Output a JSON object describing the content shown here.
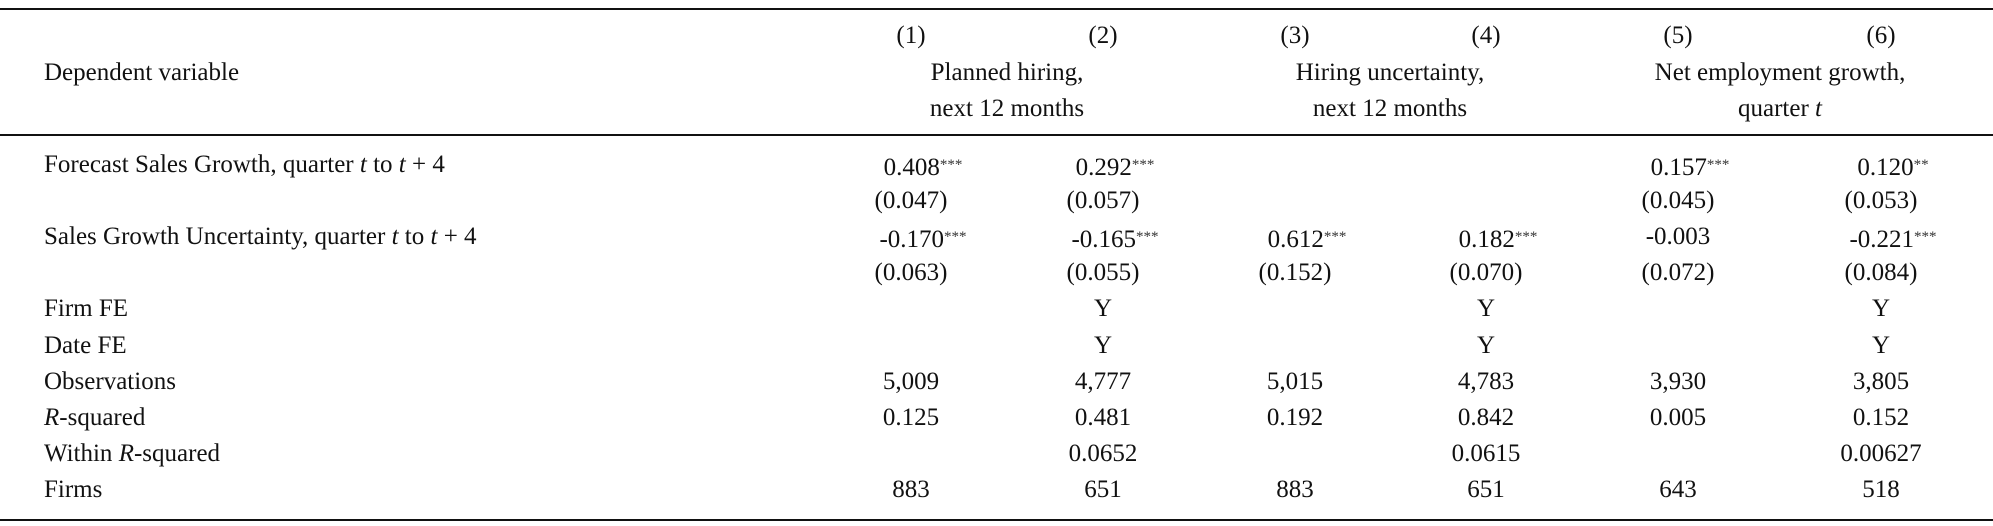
{
  "header": {
    "dependent": "Dependent variable",
    "columns": [
      "(1)",
      "(2)",
      "(3)",
      "(4)",
      "(5)",
      "(6)"
    ],
    "groups": [
      {
        "lines": [
          "Planned hiring,",
          "next 12 months"
        ]
      },
      {
        "lines": [
          "Hiring uncertainty,",
          "next 12 months"
        ]
      },
      {
        "lines": [
          "Net employment growth,",
          [
            "quarter ",
            {
              "text": "t",
              "italic": true
            }
          ]
        ]
      }
    ]
  },
  "rows": [
    {
      "label": [
        "Forecast Sales Growth, quarter ",
        {
          "text": "t",
          "italic": true
        },
        " to ",
        {
          "text": "t",
          "italic": true
        },
        " + 4"
      ],
      "cells": [
        {
          "value": "0.408",
          "stars": "***"
        },
        {
          "value": "0.292",
          "stars": "***"
        },
        null,
        null,
        {
          "value": "0.157",
          "stars": "***"
        },
        {
          "value": "0.120",
          "stars": "**"
        }
      ]
    },
    {
      "label": null,
      "cells": [
        "(0.047)",
        "(0.057)",
        null,
        null,
        "(0.045)",
        "(0.053)"
      ]
    },
    {
      "label": [
        "Sales Growth Uncertainty, quarter ",
        {
          "text": "t",
          "italic": true
        },
        " to ",
        {
          "text": "t",
          "italic": true
        },
        " + 4"
      ],
      "cells": [
        {
          "value": "-0.170",
          "stars": "***"
        },
        {
          "value": "-0.165",
          "stars": "***"
        },
        {
          "value": "0.612",
          "stars": "***"
        },
        {
          "value": "0.182",
          "stars": "***"
        },
        "-0.003",
        {
          "value": "-0.221",
          "stars": "***"
        }
      ]
    },
    {
      "label": null,
      "cells": [
        "(0.063)",
        "(0.055)",
        "(0.152)",
        "(0.070)",
        "(0.072)",
        "(0.084)"
      ]
    },
    {
      "label": [
        "Firm FE"
      ],
      "cells": [
        null,
        "Y",
        null,
        "Y",
        null,
        "Y"
      ]
    },
    {
      "label": [
        "Date FE"
      ],
      "cells": [
        null,
        "Y",
        null,
        "Y",
        null,
        "Y"
      ]
    },
    {
      "label": [
        "Observations"
      ],
      "cells": [
        "5,009",
        "4,777",
        "5,015",
        "4,783",
        "3,930",
        "3,805"
      ]
    },
    {
      "label": [
        {
          "text": "R",
          "italic": true
        },
        "-squared"
      ],
      "cells": [
        "0.125",
        "0.481",
        "0.192",
        "0.842",
        "0.005",
        "0.152"
      ]
    },
    {
      "label": [
        "Within ",
        {
          "text": "R",
          "italic": true
        },
        "-squared"
      ],
      "cells": [
        null,
        "0.0652",
        null,
        "0.0615",
        null,
        "0.00627"
      ]
    },
    {
      "label": [
        "Firms"
      ],
      "cells": [
        "883",
        "651",
        "883",
        "651",
        "643",
        "518"
      ]
    }
  ]
}
